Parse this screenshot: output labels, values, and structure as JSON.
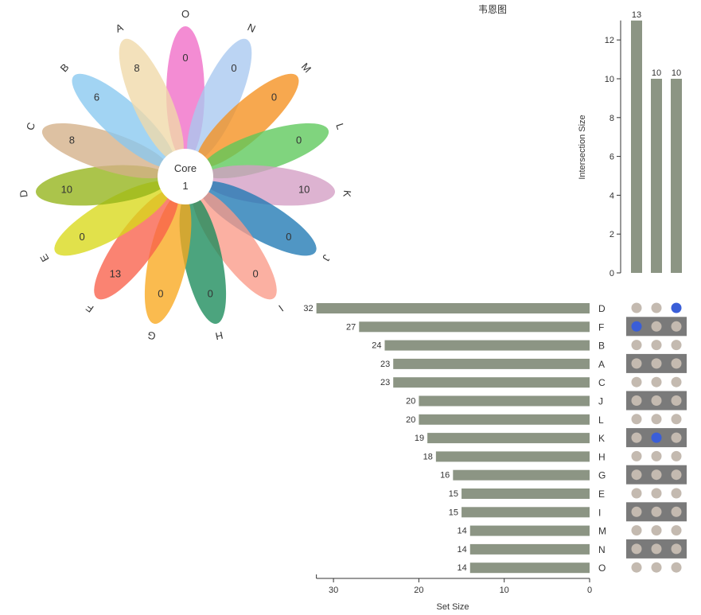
{
  "title": "韦恩图",
  "chart_data": [
    {
      "type": "flower",
      "core_label": "Core",
      "core_value": 1,
      "petals": [
        {
          "set": "O",
          "value": 0,
          "color": "#f06cc6"
        },
        {
          "set": "N",
          "value": 0,
          "color": "#a8c8f0"
        },
        {
          "set": "M",
          "value": 0,
          "color": "#f5901e"
        },
        {
          "set": "L",
          "value": 0,
          "color": "#5cc85a"
        },
        {
          "set": "K",
          "value": 10,
          "color": "#d49ec4"
        },
        {
          "set": "J",
          "value": 0,
          "color": "#1f78b4"
        },
        {
          "set": "I",
          "value": 0,
          "color": "#fa9a88"
        },
        {
          "set": "H",
          "value": 0,
          "color": "#1a8a5a"
        },
        {
          "set": "G",
          "value": 0,
          "color": "#f8a81e"
        },
        {
          "set": "F",
          "value": 13,
          "color": "#f8604a"
        },
        {
          "set": "E",
          "value": 0,
          "color": "#d8d818"
        },
        {
          "set": "D",
          "value": 10,
          "color": "#94b418"
        },
        {
          "set": "C",
          "value": 8,
          "color": "#d4b088"
        },
        {
          "set": "B",
          "value": 6,
          "color": "#88c8f0"
        },
        {
          "set": "A",
          "value": 8,
          "color": "#f0d8a8"
        }
      ]
    },
    {
      "type": "bar",
      "ylabel": "Intersection Size",
      "ylim": [
        0,
        13
      ],
      "yticks": [
        0,
        2,
        4,
        6,
        8,
        10,
        12
      ],
      "values": [
        13,
        10,
        10
      ],
      "color": "#8c9584"
    },
    {
      "type": "bar",
      "orientation": "horizontal",
      "xlabel": "Set Size",
      "xlim": [
        32,
        0
      ],
      "xticks": [
        30,
        20,
        10,
        0
      ],
      "categories": [
        "D",
        "F",
        "B",
        "A",
        "C",
        "J",
        "L",
        "K",
        "H",
        "G",
        "E",
        "I",
        "M",
        "N",
        "O"
      ],
      "values": [
        32,
        27,
        24,
        23,
        23,
        20,
        20,
        19,
        18,
        16,
        15,
        15,
        14,
        14,
        14
      ],
      "color": "#8c9584"
    },
    {
      "type": "matrix",
      "active": [
        [
          "D",
          2
        ],
        [
          "F",
          0
        ],
        [
          "K",
          1
        ]
      ],
      "active_color": "#3a5ed8",
      "inactive_color": "#c4bab0",
      "stripe_color": "#7a7a7a"
    }
  ]
}
